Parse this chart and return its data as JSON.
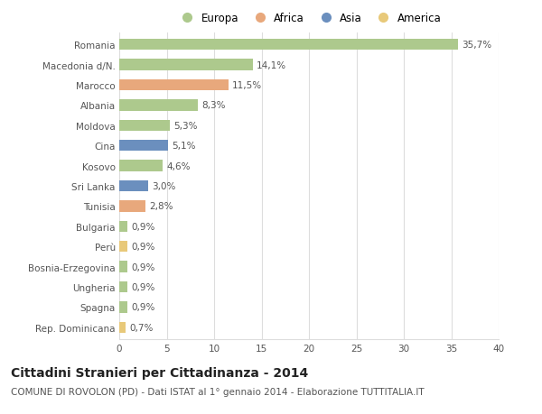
{
  "categories": [
    "Romania",
    "Macedonia d/N.",
    "Marocco",
    "Albania",
    "Moldova",
    "Cina",
    "Kosovo",
    "Sri Lanka",
    "Tunisia",
    "Bulgaria",
    "Perù",
    "Bosnia-Erzegovina",
    "Ungheria",
    "Spagna",
    "Rep. Dominicana"
  ],
  "values": [
    35.7,
    14.1,
    11.5,
    8.3,
    5.3,
    5.1,
    4.6,
    3.0,
    2.8,
    0.9,
    0.9,
    0.9,
    0.9,
    0.9,
    0.7
  ],
  "labels": [
    "35,7%",
    "14,1%",
    "11,5%",
    "8,3%",
    "5,3%",
    "5,1%",
    "4,6%",
    "3,0%",
    "2,8%",
    "0,9%",
    "0,9%",
    "0,9%",
    "0,9%",
    "0,9%",
    "0,7%"
  ],
  "continent": [
    "Europa",
    "Europa",
    "Africa",
    "Europa",
    "Europa",
    "Asia",
    "Europa",
    "Asia",
    "Africa",
    "Europa",
    "America",
    "Europa",
    "Europa",
    "Europa",
    "America"
  ],
  "colors": {
    "Europa": "#adc98d",
    "Africa": "#e8a87c",
    "Asia": "#6b8fbe",
    "America": "#e8c97a"
  },
  "title": "Cittadini Stranieri per Cittadinanza - 2014",
  "subtitle": "COMUNE DI ROVOLON (PD) - Dati ISTAT al 1° gennaio 2014 - Elaborazione TUTTITALIA.IT",
  "xlim": [
    0,
    40
  ],
  "xticks": [
    0,
    5,
    10,
    15,
    20,
    25,
    30,
    35,
    40
  ],
  "background_color": "#ffffff",
  "grid_color": "#dddddd",
  "bar_height": 0.55,
  "title_fontsize": 10,
  "subtitle_fontsize": 7.5,
  "label_fontsize": 7.5,
  "tick_fontsize": 7.5,
  "legend_fontsize": 8.5
}
